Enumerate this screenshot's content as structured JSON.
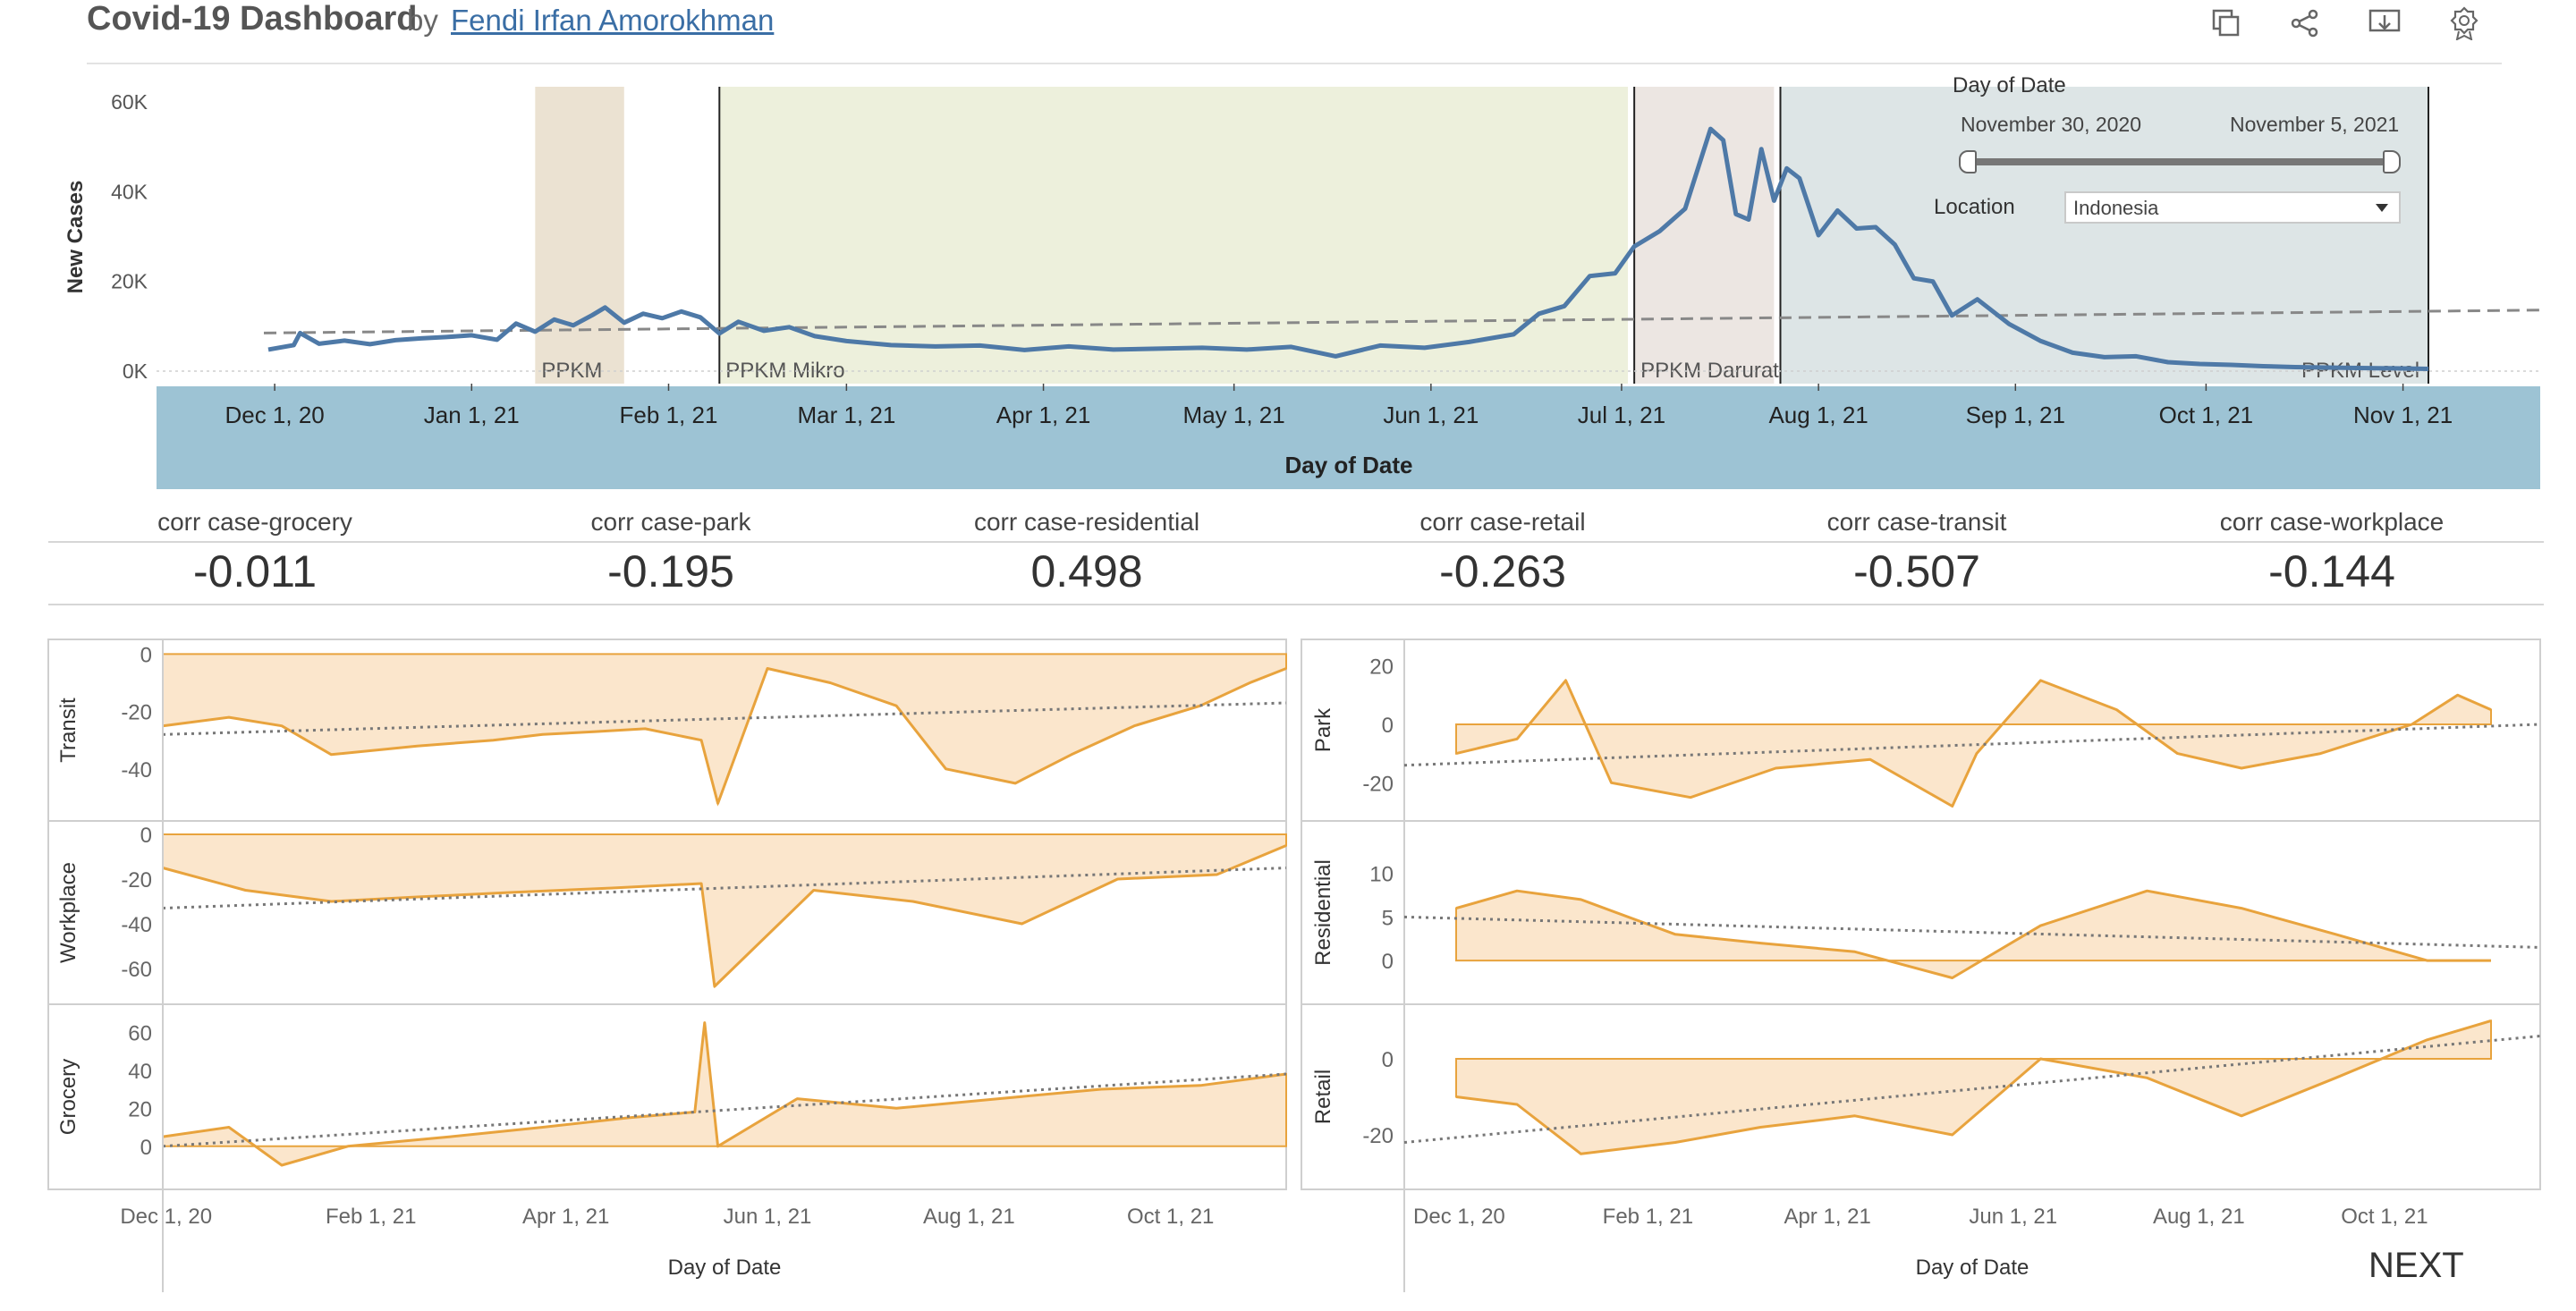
{
  "header": {
    "title": "Covid-19 Dashboard",
    "by": "by",
    "author": "Fendi Irfan Amorokhman",
    "icons": [
      "duplicate-icon",
      "share-icon",
      "download-icon",
      "badge-icon"
    ]
  },
  "filters": {
    "date_title": "Day of Date",
    "date_start": "November 30, 2020",
    "date_end": "November 5, 2021",
    "location_label": "Location",
    "location_value": "Indonesia"
  },
  "correlations": [
    {
      "label": "corr case-grocery",
      "value": "-0.011"
    },
    {
      "label": "corr case-park",
      "value": "-0.195"
    },
    {
      "label": "corr case-residential",
      "value": "0.498"
    },
    {
      "label": "corr case-retail",
      "value": "-0.263"
    },
    {
      "label": "corr case-transit",
      "value": "-0.507"
    },
    {
      "label": "corr case-workplace",
      "value": "-0.144"
    }
  ],
  "next_label": "NEXT",
  "colors": {
    "cases_line": "#4e79a7",
    "mobility_line": "#e8a33d",
    "mobility_fill": "#fbe6cc",
    "axis_band": "#9dc3d4",
    "ppkm_band": "#ebe2d2",
    "mikro_band": "#edf0dc",
    "darurat_band": "#ece6e2",
    "level_band": "#dde5e6"
  },
  "chart_data": [
    {
      "type": "line",
      "title": "",
      "ylabel": "New Cases",
      "xlabel": "Day of Date",
      "ylim": [
        0,
        62000
      ],
      "yticks": [
        "0K",
        "20K",
        "40K",
        "60K"
      ],
      "xticks": [
        "Dec 1, 20",
        "Jan 1, 21",
        "Feb 1, 21",
        "Mar 1, 21",
        "Apr 1, 21",
        "May 1, 21",
        "Jun 1, 21",
        "Jul 1, 21",
        "Aug 1, 21",
        "Sep 1, 21",
        "Oct 1, 21",
        "Nov 1, 21"
      ],
      "annotations": [
        {
          "label": "PPKM",
          "start": "2021-01-11",
          "end": "2021-01-25"
        },
        {
          "label": "PPKM Mikro",
          "start": "2021-02-09",
          "end": "2021-07-02"
        },
        {
          "label": "PPKM Darurat",
          "start": "2021-07-03",
          "end": "2021-07-25"
        },
        {
          "label": "PPKM Level",
          "start": "2021-07-26",
          "end": "2021-11-05"
        }
      ],
      "trend_line": {
        "start_value": 8500,
        "end_value": 13600
      },
      "series": [
        {
          "points": [
            [
              "2020-11-30",
              4800
            ],
            [
              "2020-12-04",
              5800
            ],
            [
              "2020-12-05",
              8500
            ],
            [
              "2020-12-08",
              6100
            ],
            [
              "2020-12-12",
              6800
            ],
            [
              "2020-12-16",
              6000
            ],
            [
              "2020-12-20",
              6900
            ],
            [
              "2020-12-24",
              7300
            ],
            [
              "2020-12-28",
              7600
            ],
            [
              "2021-01-01",
              8000
            ],
            [
              "2021-01-05",
              7000
            ],
            [
              "2021-01-08",
              10600
            ],
            [
              "2021-01-11",
              8800
            ],
            [
              "2021-01-14",
              11500
            ],
            [
              "2021-01-17",
              10200
            ],
            [
              "2021-01-20",
              12500
            ],
            [
              "2021-01-22",
              14200
            ],
            [
              "2021-01-25",
              10800
            ],
            [
              "2021-01-28",
              12800
            ],
            [
              "2021-01-31",
              11800
            ],
            [
              "2021-02-03",
              13300
            ],
            [
              "2021-02-06",
              12000
            ],
            [
              "2021-02-09",
              8400
            ],
            [
              "2021-02-12",
              11000
            ],
            [
              "2021-02-16",
              9000
            ],
            [
              "2021-02-20",
              9800
            ],
            [
              "2021-02-24",
              7800
            ],
            [
              "2021-03-01",
              6700
            ],
            [
              "2021-03-08",
              5800
            ],
            [
              "2021-03-15",
              5500
            ],
            [
              "2021-03-22",
              5700
            ],
            [
              "2021-03-29",
              4700
            ],
            [
              "2021-04-05",
              5500
            ],
            [
              "2021-04-12",
              4800
            ],
            [
              "2021-04-19",
              5000
            ],
            [
              "2021-04-26",
              5200
            ],
            [
              "2021-05-03",
              4800
            ],
            [
              "2021-05-10",
              5400
            ],
            [
              "2021-05-17",
              3300
            ],
            [
              "2021-05-24",
              5700
            ],
            [
              "2021-05-31",
              5200
            ],
            [
              "2021-06-07",
              6500
            ],
            [
              "2021-06-14",
              8200
            ],
            [
              "2021-06-18",
              12800
            ],
            [
              "2021-06-22",
              14500
            ],
            [
              "2021-06-26",
              21200
            ],
            [
              "2021-06-30",
              21800
            ],
            [
              "2021-07-03",
              27800
            ],
            [
              "2021-07-07",
              31200
            ],
            [
              "2021-07-11",
              36200
            ],
            [
              "2021-07-15",
              54000
            ],
            [
              "2021-07-17",
              51500
            ],
            [
              "2021-07-19",
              35000
            ],
            [
              "2021-07-21",
              33800
            ],
            [
              "2021-07-23",
              49500
            ],
            [
              "2021-07-25",
              38000
            ],
            [
              "2021-07-27",
              45200
            ],
            [
              "2021-07-29",
              43000
            ],
            [
              "2021-08-01",
              30300
            ],
            [
              "2021-08-04",
              35800
            ],
            [
              "2021-08-07",
              31800
            ],
            [
              "2021-08-10",
              32100
            ],
            [
              "2021-08-13",
              28200
            ],
            [
              "2021-08-16",
              20700
            ],
            [
              "2021-08-19",
              20000
            ],
            [
              "2021-08-22",
              12400
            ],
            [
              "2021-08-26",
              16000
            ],
            [
              "2021-08-31",
              10500
            ],
            [
              "2021-09-05",
              6700
            ],
            [
              "2021-09-10",
              4100
            ],
            [
              "2021-09-15",
              3100
            ],
            [
              "2021-09-20",
              3300
            ],
            [
              "2021-09-25",
              2000
            ],
            [
              "2021-09-30",
              1600
            ],
            [
              "2021-10-05",
              1400
            ],
            [
              "2021-10-10",
              1100
            ],
            [
              "2021-10-15",
              900
            ],
            [
              "2021-10-20",
              800
            ],
            [
              "2021-10-25",
              700
            ],
            [
              "2021-11-01",
              600
            ],
            [
              "2021-11-05",
              500
            ]
          ]
        }
      ]
    },
    {
      "type": "area",
      "ylabel": "Transit",
      "xlabel": "Day of Date",
      "ylim": [
        -55,
        2
      ],
      "yticks": [
        "0",
        "-20",
        "-40"
      ],
      "series": [
        {
          "x": [
            "2020-11-30",
            "2020-12-20",
            "2021-01-05",
            "2021-01-20",
            "2021-02-15",
            "2021-03-10",
            "2021-03-25",
            "2021-04-10",
            "2021-04-25",
            "2021-05-12",
            "2021-05-17",
            "2021-06-01",
            "2021-06-20",
            "2021-07-10",
            "2021-07-25",
            "2021-08-15",
            "2021-09-01",
            "2021-09-20",
            "2021-10-10",
            "2021-10-25",
            "2021-11-05"
          ],
          "values": [
            -25,
            -22,
            -25,
            -35,
            -32,
            -30,
            -28,
            -27,
            -26,
            -30,
            -52,
            -5,
            -10,
            -18,
            -40,
            -45,
            -35,
            -25,
            -18,
            -10,
            -5
          ]
        }
      ],
      "trend_line": {
        "start_value": -28,
        "end_value": -17
      }
    },
    {
      "type": "area",
      "ylabel": "Workplace",
      "xlabel": "Day of Date",
      "ylim": [
        -72,
        2
      ],
      "yticks": [
        "0",
        "-20",
        "-40",
        "-60"
      ],
      "series": [
        {
          "x": [
            "2020-11-30",
            "2020-12-25",
            "2021-01-20",
            "2021-02-15",
            "2021-03-15",
            "2021-04-15",
            "2021-05-12",
            "2021-05-16",
            "2021-06-15",
            "2021-07-15",
            "2021-08-17",
            "2021-09-15",
            "2021-10-15",
            "2021-11-05"
          ],
          "values": [
            -15,
            -25,
            -30,
            -28,
            -26,
            -24,
            -22,
            -68,
            -25,
            -30,
            -40,
            -20,
            -18,
            -5
          ]
        }
      ],
      "trend_line": {
        "start_value": -33,
        "end_value": -15
      }
    },
    {
      "type": "area",
      "ylabel": "Grocery",
      "xlabel": "Day of Date",
      "ylim": [
        -18,
        70
      ],
      "yticks": [
        "60",
        "40",
        "20",
        "0"
      ],
      "xticks": [
        "Dec 1, 20",
        "Feb 1, 21",
        "Apr 1, 21",
        "Jun 1, 21",
        "Aug 1, 21",
        "Oct 1, 21"
      ],
      "series": [
        {
          "x": [
            "2020-11-30",
            "2020-12-20",
            "2021-01-05",
            "2021-01-25",
            "2021-02-25",
            "2021-03-25",
            "2021-04-20",
            "2021-05-10",
            "2021-05-13",
            "2021-05-17",
            "2021-06-10",
            "2021-07-10",
            "2021-08-10",
            "2021-09-10",
            "2021-10-10",
            "2021-11-05"
          ],
          "values": [
            5,
            10,
            -10,
            0,
            5,
            10,
            15,
            18,
            65,
            0,
            25,
            20,
            25,
            30,
            32,
            38
          ]
        }
      ],
      "trend_line": {
        "start_value": 0,
        "end_value": 38
      }
    },
    {
      "type": "area",
      "ylabel": "Park",
      "xlabel": "Day of Date",
      "ylim": [
        -30,
        26
      ],
      "yticks": [
        "20",
        "0",
        "-20"
      ],
      "series": [
        {
          "x": [
            "2020-11-30",
            "2020-12-20",
            "2021-01-05",
            "2021-01-20",
            "2021-02-15",
            "2021-03-15",
            "2021-04-15",
            "2021-05-12",
            "2021-05-20",
            "2021-06-10",
            "2021-07-05",
            "2021-07-25",
            "2021-08-15",
            "2021-09-10",
            "2021-10-10",
            "2021-10-25",
            "2021-11-05"
          ],
          "values": [
            -10,
            -5,
            15,
            -20,
            -25,
            -15,
            -12,
            -28,
            -10,
            15,
            5,
            -10,
            -15,
            -10,
            0,
            10,
            5
          ]
        }
      ],
      "trend_line": {
        "start_value": -14,
        "end_value": 0
      }
    },
    {
      "type": "area",
      "ylabel": "Residential",
      "xlabel": "Day of Date",
      "ylim": [
        -4,
        15
      ],
      "yticks": [
        "10",
        "5",
        "0"
      ],
      "series": [
        {
          "x": [
            "2020-11-30",
            "2020-12-20",
            "2021-01-10",
            "2021-02-10",
            "2021-03-10",
            "2021-04-10",
            "2021-05-12",
            "2021-06-10",
            "2021-07-15",
            "2021-08-15",
            "2021-09-15",
            "2021-10-15",
            "2021-11-05"
          ],
          "values": [
            6,
            8,
            7,
            3,
            2,
            1,
            -2,
            4,
            8,
            6,
            3,
            0,
            0
          ]
        }
      ],
      "trend_line": {
        "start_value": 5,
        "end_value": 1.5
      }
    },
    {
      "type": "area",
      "ylabel": "Retail",
      "xlabel": "Day of Date",
      "ylim": [
        -32,
        12
      ],
      "yticks": [
        "0",
        "-20"
      ],
      "xticks": [
        "Dec 1, 20",
        "Feb 1, 21",
        "Apr 1, 21",
        "Jun 1, 21",
        "Aug 1, 21",
        "Oct 1, 21"
      ],
      "series": [
        {
          "x": [
            "2020-11-30",
            "2020-12-20",
            "2021-01-10",
            "2021-02-10",
            "2021-03-10",
            "2021-04-10",
            "2021-05-12",
            "2021-06-10",
            "2021-07-15",
            "2021-08-15",
            "2021-09-15",
            "2021-10-15",
            "2021-11-05"
          ],
          "values": [
            -10,
            -12,
            -25,
            -22,
            -18,
            -15,
            -20,
            0,
            -5,
            -15,
            -5,
            5,
            10
          ]
        }
      ],
      "trend_line": {
        "start_value": -22,
        "end_value": 6
      }
    }
  ]
}
